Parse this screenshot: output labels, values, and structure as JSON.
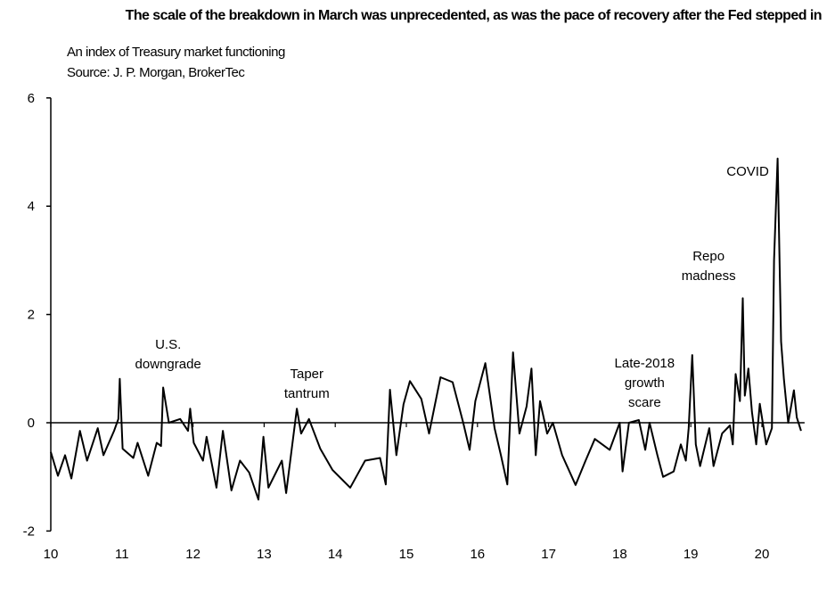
{
  "chart_data": {
    "type": "line",
    "title": "The scale of the breakdown in March was unprecedented, as was the pace of recovery after the Fed stepped in",
    "subtitle": "An index of Treasury  market functioning",
    "source": "Source: J. P. Morgan, BrokerTec",
    "xlabel": "",
    "ylabel": "",
    "xlim": [
      10,
      20.7
    ],
    "ylim": [
      -2,
      6
    ],
    "x_ticks": [
      "10",
      "11",
      "12",
      "13",
      "14",
      "15",
      "16",
      "17",
      "18",
      "19",
      "20"
    ],
    "y_ticks": [
      "6",
      "4",
      "2",
      "0",
      "-2"
    ],
    "grid": false,
    "line_color": "#000000",
    "annotations": [
      {
        "lines": [
          "U.S.",
          "downgrade"
        ],
        "x": 11.65
      },
      {
        "lines": [
          "Taper",
          "tantrum"
        ],
        "x": 13.6
      },
      {
        "lines": [
          "Late-2018",
          "growth",
          "scare"
        ],
        "x": 18.35
      },
      {
        "lines": [
          "Repo",
          "madness"
        ],
        "x": 19.25
      },
      {
        "lines": [
          "COVID"
        ],
        "x": 19.8
      }
    ],
    "series": [
      {
        "points": [
          [
            10.0,
            -0.54
          ],
          [
            10.1,
            -0.98
          ],
          [
            10.2,
            -0.6
          ],
          [
            10.29,
            -1.03
          ],
          [
            10.41,
            -0.15
          ],
          [
            10.51,
            -0.7
          ],
          [
            10.66,
            -0.1
          ],
          [
            10.74,
            -0.6
          ],
          [
            10.89,
            -0.15
          ],
          [
            10.95,
            0.07
          ],
          [
            10.97,
            0.81
          ],
          [
            11.01,
            -0.48
          ],
          [
            11.16,
            -0.65
          ],
          [
            11.22,
            -0.37
          ],
          [
            11.37,
            -0.98
          ],
          [
            11.49,
            -0.37
          ],
          [
            11.55,
            -0.43
          ],
          [
            11.58,
            0.65
          ],
          [
            11.66,
            0.0
          ],
          [
            11.82,
            0.07
          ],
          [
            11.93,
            -0.15
          ],
          [
            11.96,
            0.26
          ],
          [
            12.01,
            -0.37
          ],
          [
            12.14,
            -0.7
          ],
          [
            12.19,
            -0.26
          ],
          [
            12.33,
            -1.2
          ],
          [
            12.42,
            -0.15
          ],
          [
            12.54,
            -1.25
          ],
          [
            12.66,
            -0.7
          ],
          [
            12.79,
            -0.92
          ],
          [
            12.92,
            -1.42
          ],
          [
            12.99,
            -0.26
          ],
          [
            13.06,
            -1.2
          ],
          [
            13.25,
            -0.7
          ],
          [
            13.31,
            -1.3
          ],
          [
            13.46,
            0.26
          ],
          [
            13.52,
            -0.2
          ],
          [
            13.63,
            0.07
          ],
          [
            13.79,
            -0.48
          ],
          [
            13.96,
            -0.87
          ],
          [
            14.21,
            -1.2
          ],
          [
            14.42,
            -0.7
          ],
          [
            14.63,
            -0.65
          ],
          [
            14.71,
            -1.14
          ],
          [
            14.77,
            0.61
          ],
          [
            14.86,
            -0.6
          ],
          [
            14.96,
            0.34
          ],
          [
            15.05,
            0.77
          ],
          [
            15.21,
            0.44
          ],
          [
            15.32,
            -0.2
          ],
          [
            15.48,
            0.84
          ],
          [
            15.65,
            0.75
          ],
          [
            15.8,
            0.0
          ],
          [
            15.89,
            -0.5
          ],
          [
            15.97,
            0.4
          ],
          [
            16.11,
            1.1
          ],
          [
            16.24,
            -0.1
          ],
          [
            16.33,
            -0.6
          ],
          [
            16.42,
            -1.14
          ],
          [
            16.5,
            1.3
          ],
          [
            16.59,
            -0.2
          ],
          [
            16.69,
            0.3
          ],
          [
            16.76,
            1.0
          ],
          [
            16.82,
            -0.6
          ],
          [
            16.88,
            0.4
          ],
          [
            16.98,
            -0.2
          ],
          [
            17.06,
            0.0
          ],
          [
            17.19,
            -0.6
          ],
          [
            17.38,
            -1.15
          ],
          [
            17.52,
            -0.7
          ],
          [
            17.65,
            -0.3
          ],
          [
            17.86,
            -0.5
          ],
          [
            18.0,
            0.0
          ],
          [
            18.04,
            -0.9
          ],
          [
            18.13,
            0.0
          ],
          [
            18.27,
            0.05
          ],
          [
            18.36,
            -0.5
          ],
          [
            18.42,
            0.0
          ],
          [
            18.53,
            -0.6
          ],
          [
            18.61,
            -1.0
          ],
          [
            18.76,
            -0.9
          ],
          [
            18.86,
            -0.4
          ],
          [
            18.93,
            -0.7
          ],
          [
            18.97,
            -0.1
          ],
          [
            19.02,
            1.25
          ],
          [
            19.07,
            -0.4
          ],
          [
            19.13,
            -0.8
          ],
          [
            19.26,
            -0.1
          ],
          [
            19.32,
            -0.8
          ],
          [
            19.44,
            -0.2
          ],
          [
            19.55,
            -0.05
          ],
          [
            19.59,
            -0.4
          ],
          [
            19.63,
            0.9
          ],
          [
            19.69,
            0.4
          ],
          [
            19.73,
            2.3
          ],
          [
            19.76,
            0.5
          ],
          [
            19.81,
            1.0
          ],
          [
            19.86,
            0.2
          ],
          [
            19.92,
            -0.4
          ],
          [
            19.97,
            0.35
          ],
          [
            20.06,
            -0.4
          ],
          [
            20.14,
            -0.1
          ],
          [
            20.17,
            3.0
          ],
          [
            20.22,
            4.88
          ],
          [
            20.27,
            1.5
          ],
          [
            20.31,
            0.8
          ],
          [
            20.37,
            0.0
          ],
          [
            20.45,
            0.6
          ],
          [
            20.49,
            0.1
          ],
          [
            20.55,
            -0.15
          ]
        ]
      }
    ]
  }
}
